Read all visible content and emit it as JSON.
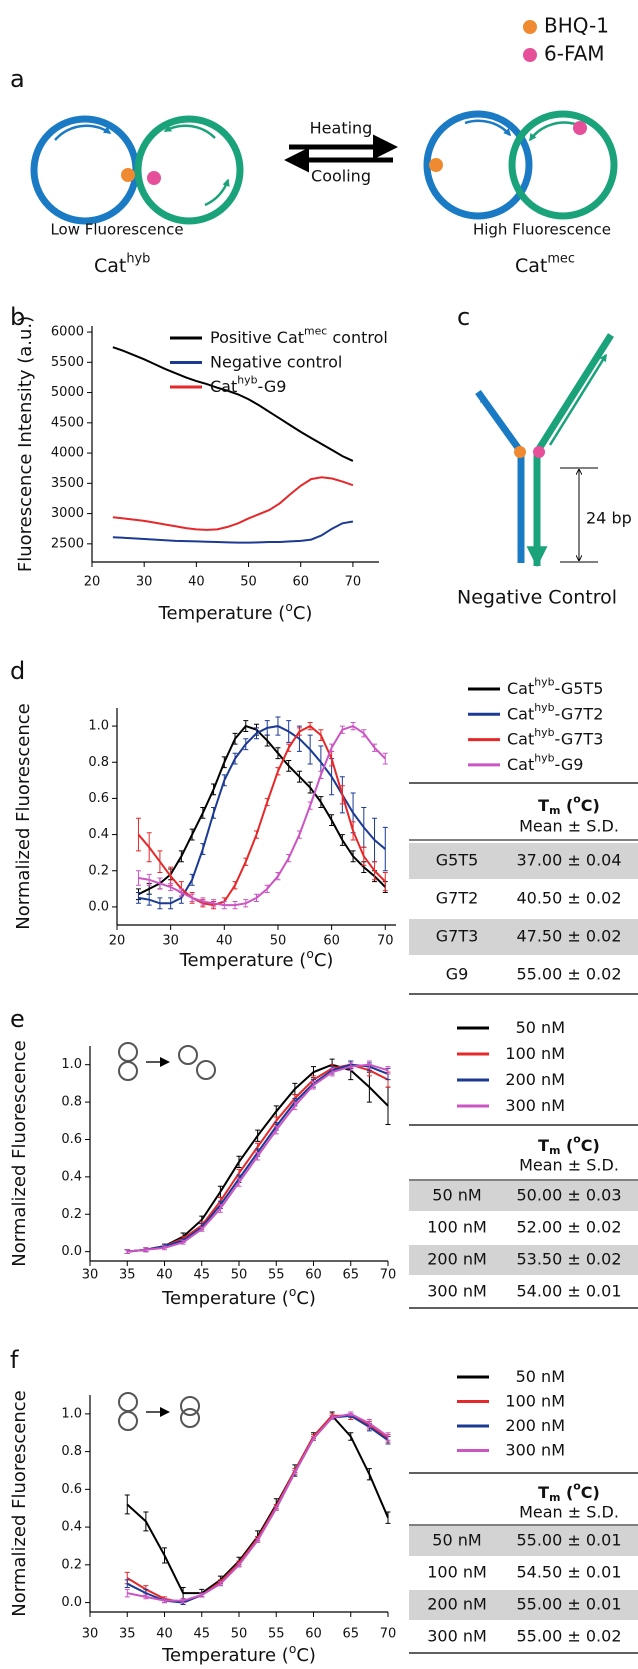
{
  "panel_labels": [
    "a",
    "b",
    "c",
    "d",
    "e",
    "f"
  ],
  "diagram_a": {
    "legend": [
      "BHQ-1",
      "6-FAM"
    ],
    "heating": "Heating",
    "cooling": "Cooling",
    "left_caption": "Low Fluorescence",
    "right_caption": "High Fluorescence",
    "left_name": [
      "Cat",
      "hyb"
    ],
    "right_name": [
      "Cat",
      "mec"
    ]
  },
  "diagram_c": {
    "length": "24 bp",
    "caption": "Negative Control"
  },
  "chart_data": [
    {
      "type": "line",
      "ylabel": "Fluorescence Intensity (a.u.)",
      "xlabel": [
        "Temperature (",
        "o",
        "C)"
      ],
      "x": [
        24,
        26,
        28,
        30,
        32,
        34,
        36,
        38,
        40,
        42,
        44,
        46,
        48,
        50,
        52,
        54,
        56,
        58,
        60,
        62,
        64,
        66,
        68,
        70
      ],
      "xlim": [
        20,
        75
      ],
      "xticks": [
        20,
        30,
        40,
        50,
        60,
        70
      ],
      "ylim": [
        2200,
        6100
      ],
      "yticks": [
        2500,
        3000,
        3500,
        4000,
        4500,
        5000,
        5500,
        6000
      ],
      "series": [
        {
          "name": [
            "Positive Cat",
            "mec",
            " control"
          ],
          "color": "#000000",
          "values": [
            5750,
            5690,
            5620,
            5550,
            5470,
            5390,
            5320,
            5250,
            5190,
            5140,
            5080,
            5030,
            4970,
            4890,
            4790,
            4680,
            4570,
            4460,
            4350,
            4250,
            4150,
            4050,
            3950,
            3870
          ]
        },
        {
          "name": [
            "Negative control"
          ],
          "color": "#1c3a94",
          "values": [
            2610,
            2600,
            2590,
            2580,
            2570,
            2560,
            2550,
            2545,
            2540,
            2535,
            2530,
            2525,
            2520,
            2520,
            2525,
            2530,
            2530,
            2540,
            2550,
            2570,
            2640,
            2750,
            2840,
            2870
          ]
        },
        {
          "name": [
            "Cat",
            "hyb",
            "-G9"
          ],
          "color": "#e5282a",
          "values": [
            2940,
            2920,
            2900,
            2880,
            2850,
            2820,
            2790,
            2760,
            2740,
            2730,
            2740,
            2780,
            2840,
            2920,
            2990,
            3060,
            3170,
            3320,
            3460,
            3570,
            3600,
            3580,
            3530,
            3470
          ]
        }
      ]
    },
    {
      "type": "line",
      "ylabel": "Normalized Fluorescence",
      "xlabel": [
        "Temperature (",
        "o",
        "C)"
      ],
      "x": [
        24,
        26,
        28,
        30,
        32,
        34,
        36,
        38,
        40,
        42,
        44,
        46,
        48,
        50,
        52,
        54,
        56,
        58,
        60,
        62,
        64,
        66,
        68,
        70
      ],
      "xlim": [
        20,
        72
      ],
      "xticks": [
        20,
        30,
        40,
        50,
        60,
        70
      ],
      "ylim": [
        -0.1,
        1.1
      ],
      "yticks": [
        {
          "value": 0,
          "label": "0.0"
        },
        0.2,
        0.4,
        0.6,
        0.8,
        {
          "value": 1,
          "label": "1.0"
        }
      ],
      "series": [
        {
          "name": [
            "Cat",
            "hyb",
            "-G5T5"
          ],
          "color": "#000000",
          "values": [
            0.07,
            0.1,
            0.13,
            0.18,
            0.28,
            0.4,
            0.52,
            0.65,
            0.8,
            0.93,
            1.0,
            0.98,
            0.92,
            0.85,
            0.78,
            0.72,
            0.66,
            0.58,
            0.48,
            0.37,
            0.28,
            0.22,
            0.17,
            0.11
          ],
          "errors": [
            0.03,
            0.03,
            0.03,
            0.03,
            0.03,
            0.03,
            0.03,
            0.03,
            0.03,
            0.03,
            0.03,
            0.03,
            0.03,
            0.03,
            0.03,
            0.03,
            0.03,
            0.03,
            0.03,
            0.03,
            0.03,
            0.03,
            0.03,
            0.03
          ]
        },
        {
          "name": [
            "Cat",
            "hyb",
            "-G7T2"
          ],
          "color": "#1c3a94",
          "values": [
            0.05,
            0.04,
            0.02,
            0.02,
            0.05,
            0.15,
            0.32,
            0.52,
            0.7,
            0.82,
            0.9,
            0.96,
            0.99,
            1.0,
            0.97,
            0.93,
            0.87,
            0.8,
            0.72,
            0.62,
            0.52,
            0.44,
            0.37,
            0.32
          ],
          "errors": [
            0.03,
            0.03,
            0.03,
            0.03,
            0.03,
            0.03,
            0.03,
            0.03,
            0.03,
            0.03,
            0.03,
            0.03,
            0.04,
            0.05,
            0.06,
            0.07,
            0.08,
            0.09,
            0.1,
            0.1,
            0.11,
            0.11,
            0.12,
            0.12
          ]
        },
        {
          "name": [
            "Cat",
            "hyb",
            "-G7T3"
          ],
          "color": "#e5282a",
          "values": [
            0.4,
            0.33,
            0.25,
            0.17,
            0.1,
            0.05,
            0.02,
            0.01,
            0.03,
            0.12,
            0.25,
            0.4,
            0.58,
            0.75,
            0.88,
            0.97,
            1.0,
            0.95,
            0.82,
            0.62,
            0.42,
            0.28,
            0.2,
            0.14
          ],
          "errors": [
            0.09,
            0.08,
            0.06,
            0.05,
            0.04,
            0.03,
            0.02,
            0.02,
            0.02,
            0.02,
            0.02,
            0.02,
            0.02,
            0.02,
            0.02,
            0.02,
            0.02,
            0.03,
            0.04,
            0.05,
            0.05,
            0.05,
            0.05,
            0.05
          ]
        },
        {
          "name": [
            "Cat",
            "hyb",
            "-G9"
          ],
          "color": "#cc55c4",
          "values": [
            0.16,
            0.15,
            0.13,
            0.11,
            0.08,
            0.05,
            0.03,
            0.02,
            0.01,
            0.01,
            0.02,
            0.05,
            0.1,
            0.17,
            0.27,
            0.4,
            0.56,
            0.73,
            0.88,
            0.98,
            1.0,
            0.96,
            0.88,
            0.82
          ],
          "errors": [
            0.04,
            0.03,
            0.03,
            0.02,
            0.02,
            0.02,
            0.02,
            0.02,
            0.02,
            0.02,
            0.02,
            0.02,
            0.02,
            0.02,
            0.02,
            0.02,
            0.02,
            0.02,
            0.02,
            0.02,
            0.02,
            0.02,
            0.02,
            0.03
          ]
        }
      ]
    },
    {
      "type": "line",
      "ylabel": "Normalized Fluorescence",
      "xlabel": [
        "Temperature (",
        "o",
        "C)"
      ],
      "x": [
        35,
        37.5,
        40,
        42.5,
        45,
        47.5,
        50,
        52.5,
        55,
        57.5,
        60,
        62.5,
        65,
        67.5,
        70
      ],
      "xlim": [
        30,
        70
      ],
      "xticks": [
        30,
        35,
        40,
        45,
        50,
        55,
        60,
        65,
        70
      ],
      "ylim": [
        -0.05,
        1.1
      ],
      "yticks": [
        {
          "value": 0,
          "label": "0.0"
        },
        0.2,
        0.4,
        0.6,
        0.8,
        {
          "value": 1,
          "label": "1.0"
        }
      ],
      "series": [
        {
          "name": [
            "50 nM"
          ],
          "color": "#000000",
          "values": [
            0.0,
            0.01,
            0.03,
            0.08,
            0.17,
            0.32,
            0.48,
            0.62,
            0.75,
            0.87,
            0.96,
            1.0,
            0.97,
            0.88,
            0.78
          ],
          "errors": [
            0.01,
            0.01,
            0.01,
            0.02,
            0.02,
            0.03,
            0.03,
            0.03,
            0.03,
            0.03,
            0.03,
            0.03,
            0.05,
            0.08,
            0.1
          ]
        },
        {
          "name": [
            "100 nM"
          ],
          "color": "#e5282a",
          "values": [
            0.0,
            0.01,
            0.03,
            0.07,
            0.14,
            0.27,
            0.42,
            0.56,
            0.7,
            0.82,
            0.92,
            0.98,
            1.0,
            0.97,
            0.92
          ],
          "errors": [
            0.01,
            0.01,
            0.01,
            0.01,
            0.02,
            0.02,
            0.02,
            0.02,
            0.02,
            0.02,
            0.02,
            0.02,
            0.02,
            0.03,
            0.04
          ]
        },
        {
          "name": [
            "200 nM"
          ],
          "color": "#1c3a94",
          "values": [
            0.0,
            0.01,
            0.03,
            0.06,
            0.13,
            0.25,
            0.39,
            0.53,
            0.67,
            0.8,
            0.9,
            0.97,
            1.0,
            0.99,
            0.95
          ],
          "errors": [
            0.01,
            0.01,
            0.01,
            0.01,
            0.02,
            0.02,
            0.02,
            0.02,
            0.02,
            0.02,
            0.02,
            0.02,
            0.02,
            0.02,
            0.03
          ]
        },
        {
          "name": [
            "300 nM"
          ],
          "color": "#cc55c4",
          "values": [
            0.0,
            0.01,
            0.02,
            0.05,
            0.12,
            0.23,
            0.37,
            0.51,
            0.65,
            0.78,
            0.89,
            0.96,
            0.99,
            1.0,
            0.97
          ],
          "errors": [
            0.01,
            0.01,
            0.01,
            0.01,
            0.01,
            0.02,
            0.02,
            0.02,
            0.02,
            0.02,
            0.02,
            0.02,
            0.02,
            0.02,
            0.02
          ]
        }
      ]
    },
    {
      "type": "line",
      "ylabel": "Normalized Fluorescence",
      "xlabel": [
        "Temperature (",
        "o",
        "C)"
      ],
      "x": [
        35,
        37.5,
        40,
        42.5,
        45,
        47.5,
        50,
        52.5,
        55,
        57.5,
        60,
        62.5,
        65,
        67.5,
        70
      ],
      "xlim": [
        30,
        70
      ],
      "xticks": [
        30,
        35,
        40,
        45,
        50,
        55,
        60,
        65,
        70
      ],
      "ylim": [
        -0.05,
        1.1
      ],
      "yticks": [
        {
          "value": 0,
          "label": "0.0"
        },
        0.2,
        0.4,
        0.6,
        0.8,
        {
          "value": 1,
          "label": "1.0"
        }
      ],
      "series": [
        {
          "name": [
            "50 nM"
          ],
          "color": "#000000",
          "values": [
            0.52,
            0.43,
            0.25,
            0.05,
            0.05,
            0.12,
            0.22,
            0.35,
            0.52,
            0.7,
            0.88,
            0.99,
            0.88,
            0.68,
            0.45
          ],
          "errors": [
            0.05,
            0.05,
            0.04,
            0.03,
            0.02,
            0.02,
            0.02,
            0.03,
            0.03,
            0.03,
            0.02,
            0.02,
            0.02,
            0.03,
            0.03
          ]
        },
        {
          "name": [
            "100 nM"
          ],
          "color": "#e5282a",
          "values": [
            0.13,
            0.07,
            0.02,
            0.0,
            0.04,
            0.11,
            0.21,
            0.34,
            0.51,
            0.7,
            0.88,
            0.99,
            0.99,
            0.94,
            0.87
          ],
          "errors": [
            0.03,
            0.02,
            0.01,
            0.01,
            0.01,
            0.01,
            0.01,
            0.01,
            0.01,
            0.01,
            0.01,
            0.01,
            0.02,
            0.02,
            0.02
          ]
        },
        {
          "name": [
            "200 nM"
          ],
          "color": "#1c3a94",
          "values": [
            0.1,
            0.05,
            0.01,
            0.0,
            0.04,
            0.1,
            0.2,
            0.33,
            0.5,
            0.69,
            0.87,
            0.98,
            0.99,
            0.93,
            0.86
          ],
          "errors": [
            0.02,
            0.02,
            0.01,
            0.01,
            0.01,
            0.01,
            0.01,
            0.01,
            0.01,
            0.01,
            0.01,
            0.01,
            0.01,
            0.02,
            0.02
          ]
        },
        {
          "name": [
            "300 nM"
          ],
          "color": "#cc55c4",
          "values": [
            0.05,
            0.03,
            0.01,
            0.01,
            0.04,
            0.1,
            0.2,
            0.33,
            0.5,
            0.69,
            0.87,
            0.98,
            1.0,
            0.95,
            0.88
          ],
          "errors": [
            0.02,
            0.01,
            0.01,
            0.01,
            0.01,
            0.01,
            0.01,
            0.01,
            0.01,
            0.01,
            0.01,
            0.01,
            0.01,
            0.02,
            0.02
          ]
        }
      ]
    }
  ],
  "tables": [
    {
      "header": [
        "T",
        "m",
        " (",
        "o",
        "C)"
      ],
      "subheader": "Mean ± S.D.",
      "rows": [
        [
          "G5T5",
          "37.00 ± 0.04"
        ],
        [
          "G7T2",
          "40.50 ± 0.02"
        ],
        [
          "G7T3",
          "47.50 ± 0.02"
        ],
        [
          "G9",
          "55.00 ± 0.02"
        ]
      ]
    },
    {
      "header": [
        "T",
        "m",
        " (",
        "o",
        "C)"
      ],
      "subheader": "Mean ± S.D.",
      "rows": [
        [
          "50 nM",
          "50.00 ± 0.03"
        ],
        [
          "100 nM",
          "52.00 ± 0.02"
        ],
        [
          "200 nM",
          "53.50 ± 0.02"
        ],
        [
          "300 nM",
          "54.00 ± 0.01"
        ]
      ]
    },
    {
      "header": [
        "T",
        "m",
        " (",
        "o",
        "C)"
      ],
      "subheader": "Mean ± S.D.",
      "rows": [
        [
          "50 nM",
          "55.00 ± 0.01"
        ],
        [
          "100 nM",
          "54.50 ± 0.01"
        ],
        [
          "200 nM",
          "55.00 ± 0.01"
        ],
        [
          "300 nM",
          "55.00 ± 0.02"
        ]
      ]
    }
  ]
}
